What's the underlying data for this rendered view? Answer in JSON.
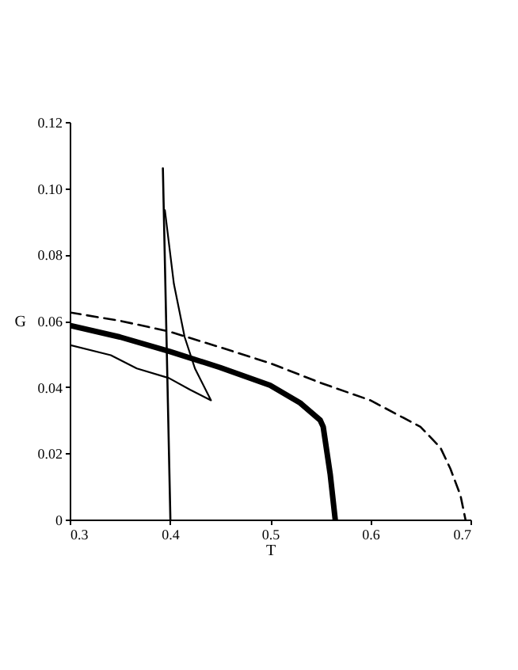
{
  "chart_data": {
    "type": "line",
    "xlabel": "T",
    "ylabel": "G",
    "xlim": [
      0.3,
      0.7
    ],
    "ylim": [
      0,
      0.12
    ],
    "xticks": [
      0.3,
      0.4,
      0.5,
      0.6,
      0.7
    ],
    "yticks": [
      0,
      0.02,
      0.04,
      0.06,
      0.08,
      {
        "value": 0.1,
        "label": "0.10"
      },
      0.12
    ],
    "grid": false,
    "marker": "none",
    "series": [
      {
        "color": "#000000",
        "line_style": "dashed",
        "x": [
          0.3,
          0.35,
          0.4,
          0.45,
          0.5,
          0.55,
          0.6,
          0.65,
          0.67,
          0.68,
          0.69,
          0.695
        ],
        "values": [
          0.0625,
          0.06,
          0.0567,
          0.052,
          0.0472,
          0.0413,
          0.036,
          0.028,
          0.0217,
          0.0153,
          0.0073,
          0
        ]
      },
      {
        "color": "#000000",
        "line_style": "solid",
        "x": [
          0.3,
          0.35,
          0.4,
          0.45,
          0.5,
          0.53,
          0.55,
          0.553,
          0.56,
          0.565
        ],
        "values": [
          0.0586,
          0.0551,
          0.0507,
          0.0459,
          0.0405,
          0.0352,
          0.03,
          0.028,
          0.0137,
          0
        ]
      },
      {
        "color": "#000000",
        "line_style": "solid",
        "x": [
          0.393,
          0.4005
        ],
        "values": [
          0.106,
          0
        ]
      },
      {
        "color": "#000000",
        "line_style": "solid",
        "x": [
          0.395,
          0.404,
          0.4147,
          0.425,
          0.441,
          0.42,
          0.399,
          0.367,
          0.341,
          0.3
        ],
        "values": [
          0.0934,
          0.0711,
          0.0551,
          0.0456,
          0.036,
          0.0392,
          0.0427,
          0.0456,
          0.0496,
          0.0527
        ]
      }
    ]
  }
}
